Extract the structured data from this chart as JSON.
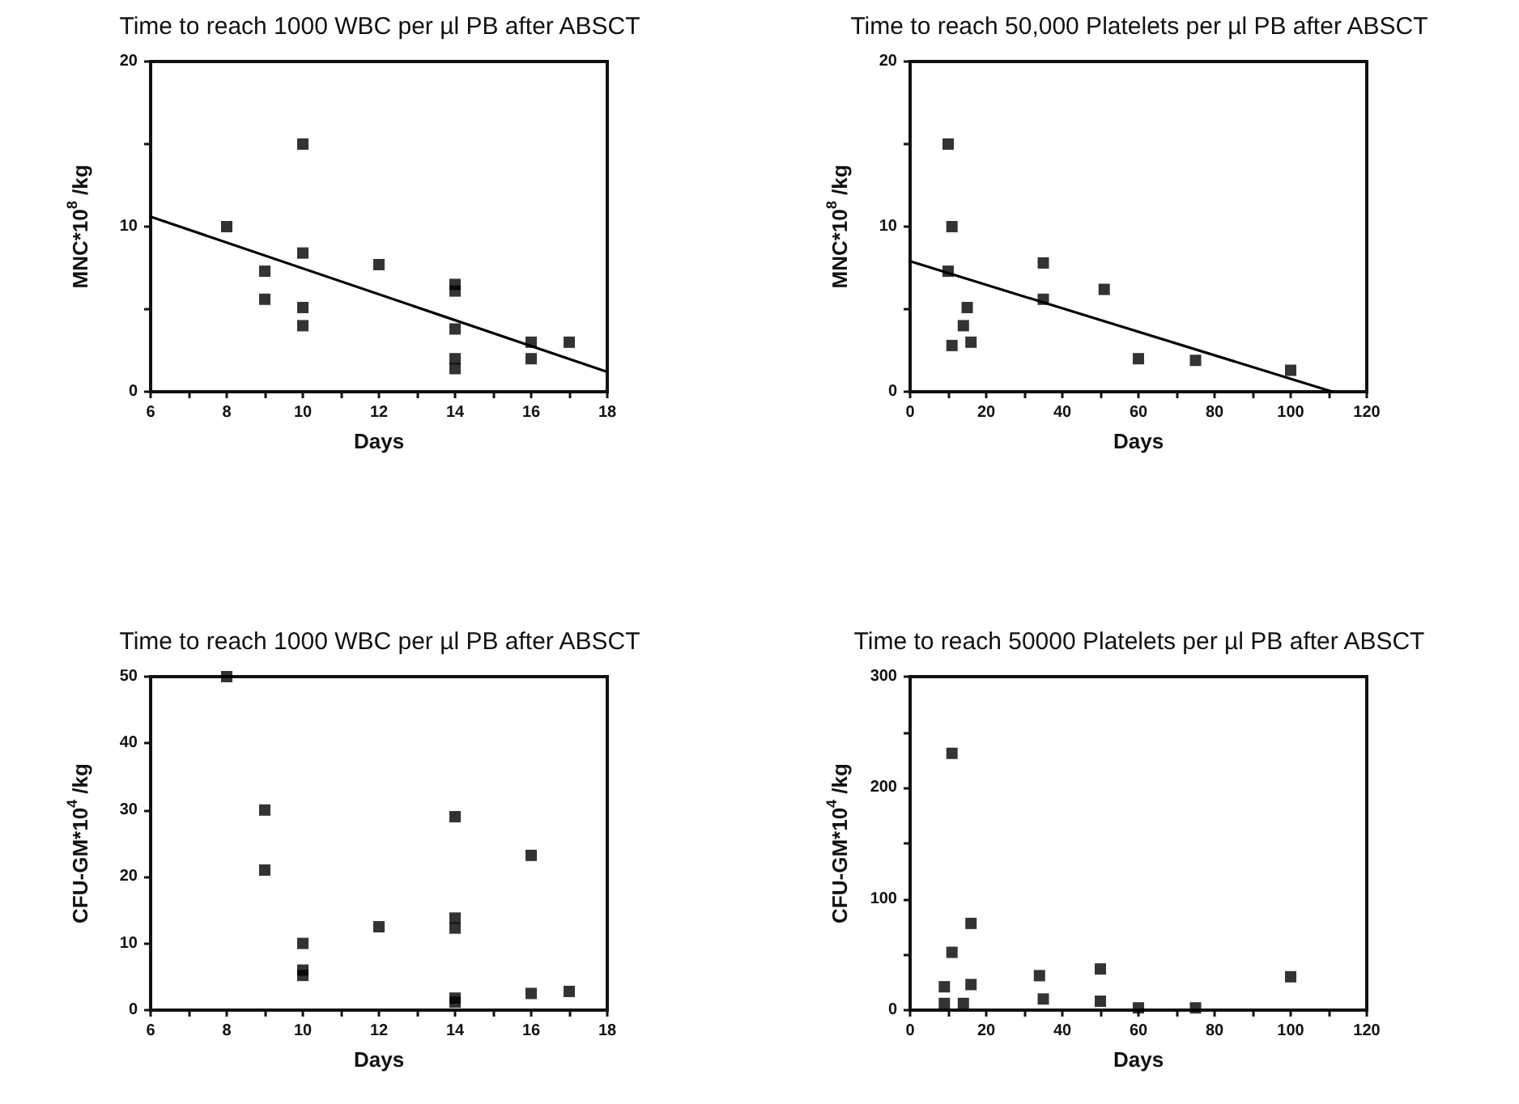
{
  "chart_data": [
    {
      "type": "scatter",
      "title": "Time to reach 1000 WBC per µl PB after ABSCT",
      "xlabel": "Days",
      "ylabel": "MNC*10$^{8}$ /kg",
      "marker": "square",
      "xlim": [
        6,
        18
      ],
      "ylim": [
        0,
        20
      ],
      "xticks": [
        6,
        {
          "value": 7,
          "label": null
        },
        8,
        {
          "value": 9,
          "label": null
        },
        10,
        {
          "value": 11,
          "label": null
        },
        12,
        {
          "value": 13,
          "label": null
        },
        14,
        {
          "value": 15,
          "label": null
        },
        16,
        {
          "value": 17,
          "label": null
        },
        18
      ],
      "yticks": [
        0,
        {
          "value": 5,
          "label": null
        },
        10,
        {
          "value": 15,
          "label": null
        },
        20
      ],
      "series": [
        {
          "color": "#000000",
          "x": [
            8,
            9,
            9,
            10,
            10,
            10,
            10,
            12,
            14,
            14,
            14,
            14,
            14,
            16,
            16,
            17
          ],
          "values": [
            10,
            7.3,
            5.6,
            15,
            8.4,
            5.1,
            4,
            7.7,
            6.5,
            6.1,
            3.8,
            2,
            1.4,
            3,
            2,
            3
          ]
        },
        {
          "type": "line",
          "marker": "none",
          "color": "#000000",
          "x": [
            6,
            18
          ],
          "values": [
            10.6,
            1.2
          ]
        }
      ]
    },
    {
      "type": "scatter",
      "title": "Time to reach 50,000 Platelets per µl PB after ABSCT",
      "xlabel": "Days",
      "ylabel": "MNC*10$^{8}$ /kg",
      "marker": "square",
      "xlim": [
        0,
        120
      ],
      "ylim": [
        0,
        20
      ],
      "xticks": [
        0,
        {
          "value": 10,
          "label": null
        },
        20,
        {
          "value": 30,
          "label": null
        },
        40,
        {
          "value": 50,
          "label": null
        },
        60,
        {
          "value": 70,
          "label": null
        },
        80,
        {
          "value": 90,
          "label": null
        },
        100,
        {
          "value": 110,
          "label": null
        },
        120
      ],
      "yticks": [
        0,
        {
          "value": 5,
          "label": null
        },
        10,
        {
          "value": 15,
          "label": null
        },
        20
      ],
      "series": [
        {
          "color": "#000000",
          "x": [
            10,
            11,
            10,
            11,
            15,
            14,
            16,
            35,
            35,
            51,
            60,
            75,
            100
          ],
          "values": [
            15,
            10,
            7.3,
            2.8,
            5.1,
            4,
            3,
            5.6,
            7.8,
            6.2,
            2,
            1.9,
            1.3
          ]
        },
        {
          "type": "line",
          "marker": "none",
          "color": "#000000",
          "x": [
            0,
            111
          ],
          "values": [
            7.9,
            0
          ]
        }
      ]
    },
    {
      "type": "scatter",
      "title": "Time to reach 1000 WBC per µl PB after ABSCT",
      "xlabel": "Days",
      "ylabel": "CFU-GM*10$^{4}$ /kg",
      "marker": "square",
      "xlim": [
        6,
        18
      ],
      "ylim": [
        0,
        50
      ],
      "xticks": [
        6,
        {
          "value": 7,
          "label": null
        },
        8,
        {
          "value": 9,
          "label": null
        },
        10,
        {
          "value": 11,
          "label": null
        },
        12,
        {
          "value": 13,
          "label": null
        },
        14,
        {
          "value": 15,
          "label": null
        },
        16,
        {
          "value": 17,
          "label": null
        },
        18
      ],
      "yticks": [
        0,
        10,
        20,
        30,
        40,
        50
      ],
      "series": [
        {
          "color": "#000000",
          "x": [
            8,
            9,
            9,
            10,
            10,
            10,
            12,
            14,
            14,
            14,
            14,
            14,
            16,
            16,
            17
          ],
          "values": [
            50,
            30,
            21,
            10,
            6,
            5.2,
            12.5,
            29,
            13.8,
            12.3,
            1.8,
            1.2,
            23.2,
            2.5,
            2.8
          ]
        }
      ]
    },
    {
      "type": "scatter",
      "title": "Time to reach 50000 Platelets per µl PB after ABSCT",
      "xlabel": "Days",
      "ylabel": "CFU-GM*10$^{4}$ /kg",
      "marker": "square",
      "xlim": [
        0,
        120
      ],
      "ylim": [
        0,
        300
      ],
      "xticks": [
        0,
        {
          "value": 10,
          "label": null
        },
        20,
        {
          "value": 30,
          "label": null
        },
        40,
        {
          "value": 50,
          "label": null
        },
        60,
        {
          "value": 70,
          "label": null
        },
        80,
        {
          "value": 90,
          "label": null
        },
        100,
        {
          "value": 110,
          "label": null
        },
        120
      ],
      "yticks": [
        0,
        {
          "value": 50,
          "label": null
        },
        100,
        {
          "value": 150,
          "label": null
        },
        200,
        {
          "value": 250,
          "label": null
        },
        300
      ],
      "series": [
        {
          "color": "#000000",
          "x": [
            11,
            16,
            11,
            9,
            16,
            9,
            14,
            34,
            35,
            50,
            50,
            60,
            75,
            100
          ],
          "values": [
            231,
            78,
            52,
            21,
            23,
            6,
            6,
            31,
            10,
            37,
            8,
            2,
            2,
            30
          ]
        }
      ]
    }
  ]
}
